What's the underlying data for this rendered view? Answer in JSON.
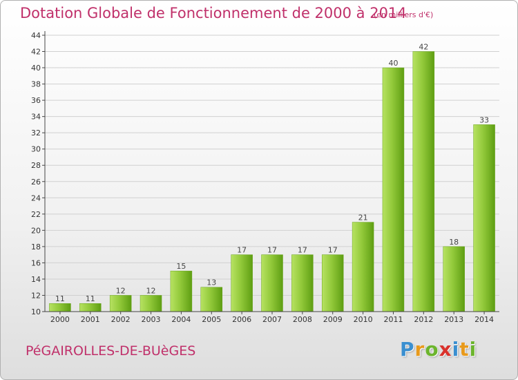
{
  "header": {
    "title": "Dotation Globale de Fonctionnement de 2000 à 2014",
    "unit": "(en milliers d'€)"
  },
  "footer": {
    "place": "PéGAIROLLES-DE-BUèGES",
    "logo": "Proxiti",
    "logo_letters": [
      "P",
      "r",
      "o",
      "x",
      "i",
      "t",
      "i"
    ]
  },
  "colors": {
    "title": "#c0306a",
    "bar_light": "#a8d84e",
    "bar_dark": "#5e9e12",
    "grid": "#d0d0d0",
    "axis": "#444444"
  },
  "chart_data": {
    "type": "bar",
    "title": "Dotation Globale de Fonctionnement de 2000 à 2014",
    "subtitle": "(en milliers d'€)",
    "xlabel": "",
    "ylabel": "",
    "categories": [
      "2000",
      "2001",
      "2002",
      "2003",
      "2004",
      "2005",
      "2006",
      "2007",
      "2008",
      "2009",
      "2010",
      "2011",
      "2012",
      "2013",
      "2014"
    ],
    "values": [
      11,
      11,
      12,
      12,
      15,
      13,
      17,
      17,
      17,
      17,
      21,
      40,
      42,
      18,
      33
    ],
    "ylim": [
      10,
      44
    ],
    "yticks": [
      10,
      12,
      14,
      16,
      18,
      20,
      22,
      24,
      26,
      28,
      30,
      32,
      34,
      36,
      38,
      40,
      42,
      44
    ],
    "grid": true,
    "data_labels": true
  }
}
